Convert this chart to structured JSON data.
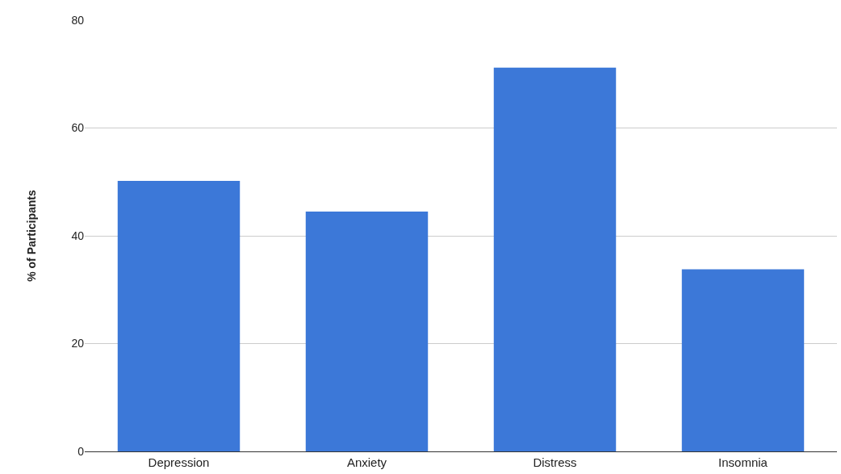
{
  "chart_data": {
    "type": "bar",
    "ylabel": "% of Participants",
    "categories": [
      "Depression",
      "Anxiety",
      "Distress",
      "Insomnia"
    ],
    "values": [
      50.2,
      44.5,
      71.2,
      33.8
    ],
    "color": "#3c78d8",
    "ylim": [
      0,
      80
    ],
    "yticks": [
      0,
      20,
      40,
      60,
      80
    ],
    "grid": "y"
  }
}
